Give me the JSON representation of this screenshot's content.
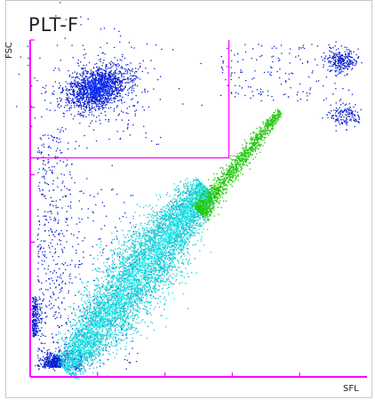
{
  "chart_data": {
    "type": "scatter",
    "title": "PLT-F",
    "xlabel": "SFL",
    "ylabel": "FSC",
    "gate": {
      "name": "gate"
    },
    "populations": [
      {
        "name": "rbc-cluster",
        "color": "#0a1ed2",
        "cx": 0.2,
        "cy": 0.86,
        "n": 1800
      },
      {
        "name": "platelet-main",
        "color": "#15d3d6",
        "cx": 0.35,
        "cy": 0.32,
        "n": 7000
      },
      {
        "name": "platelet-high",
        "color": "#22c80e",
        "cx": 0.6,
        "cy": 0.55,
        "n": 1400
      },
      {
        "name": "wbc-cluster-1",
        "color": "#0a1ed2",
        "cx": 0.92,
        "cy": 0.94,
        "n": 260
      },
      {
        "name": "wbc-cluster-2",
        "color": "#0a1ed2",
        "cx": 0.93,
        "cy": 0.78,
        "n": 160
      },
      {
        "name": "noise",
        "color": "#0a1ed2",
        "cx": 0.5,
        "cy": 0.5,
        "n": 900
      }
    ],
    "colors": {
      "axis": "#ff00ff",
      "gate": "#ff00ff"
    }
  }
}
